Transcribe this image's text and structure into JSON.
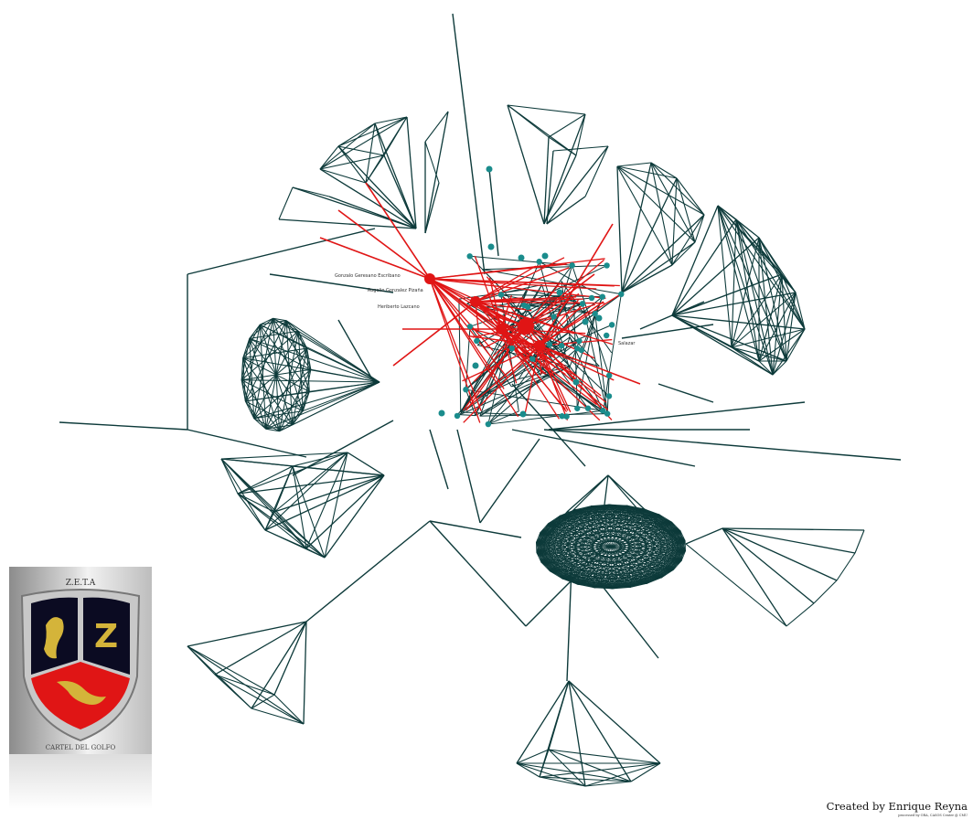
{
  "colors": {
    "edge": "#0d3a3a",
    "highlight": "#e01515",
    "node": "#1a8c8c",
    "background": "#ffffff"
  },
  "node_labels": [
    "Gonzalo Geresano Escribano",
    "Rogelio Gonzalez Pizaña",
    "Heriberto Lazcano",
    "Salazar"
  ],
  "emblem": {
    "top_text": "Z.E.T.A",
    "letter": "Z",
    "ring_text": "CARTEL DEL GOLFO"
  },
  "credit": {
    "author": "Created by Enrique Reyna",
    "tool": "processed by ORA, CASOS Center @ CMU"
  }
}
